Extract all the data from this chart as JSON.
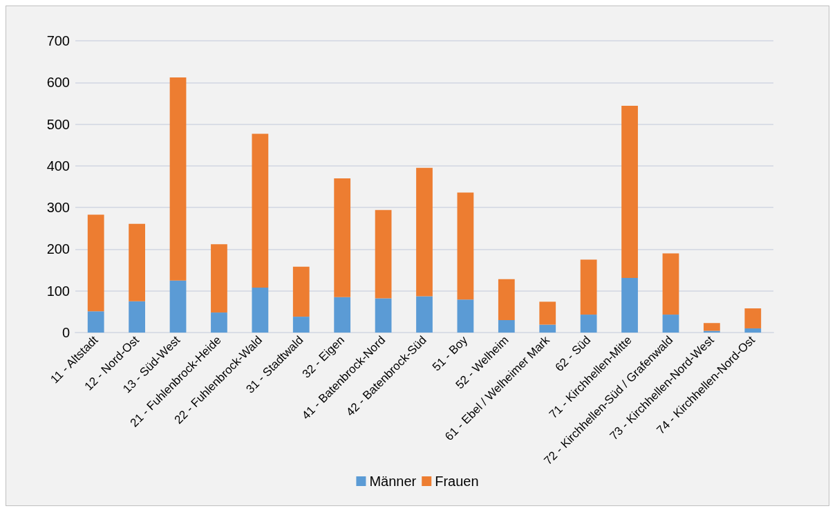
{
  "chart_data": {
    "type": "bar",
    "stacked": true,
    "categories": [
      "11 - Altstadt",
      "12 - Nord-Ost",
      "13 - Süd-West",
      "21 - Fuhlenbrock-Heide",
      "22 - Fuhlenbrock-Wald",
      "31 - Stadtwald",
      "32 - Eigen",
      "41 - Batenbrock-Nord",
      "42 - Batenbrock-Süd",
      "51 - Boy",
      "52 - Welheim",
      "61 - Ebel / Welheimer Mark",
      "62 - Süd",
      "71 - Kirchhellen-Mitte",
      "72 - Kirchhellen-Süd / Grafenwald",
      "73 - Kirchhellen-Nord-West",
      "74 - Kirchhellen-Nord-Ost"
    ],
    "series": [
      {
        "name": "Männer",
        "color": "#5b9bd5",
        "values": [
          51,
          75,
          125,
          48,
          108,
          38,
          85,
          82,
          87,
          79,
          30,
          19,
          43,
          131,
          43,
          4,
          10
        ]
      },
      {
        "name": "Frauen",
        "color": "#ed7d31",
        "values": [
          232,
          186,
          487,
          164,
          369,
          120,
          285,
          212,
          308,
          257,
          98,
          55,
          132,
          413,
          147,
          19,
          48
        ]
      }
    ],
    "ylim": [
      0,
      700
    ],
    "yticks": [
      0,
      100,
      200,
      300,
      400,
      500,
      600,
      700
    ],
    "grid": "y",
    "legend": "bottom"
  }
}
